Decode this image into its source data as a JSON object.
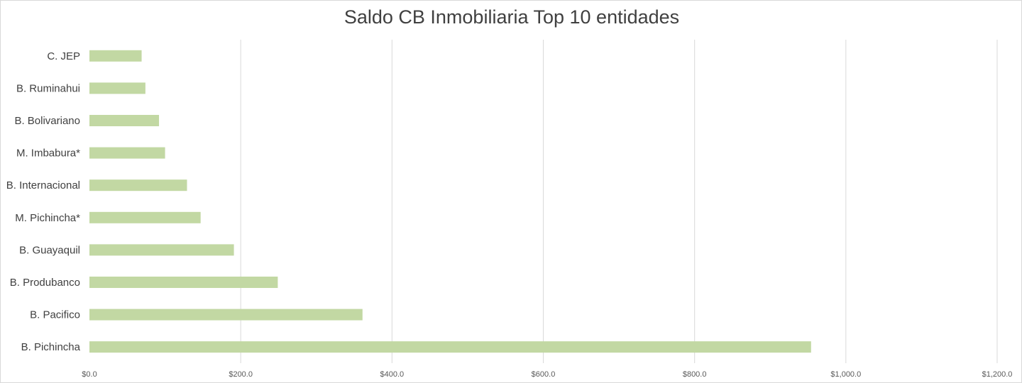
{
  "chart_data": {
    "type": "bar",
    "orientation": "horizontal",
    "title": "Saldo CB Inmobiliaria Top 10 entidades",
    "xlabel": "",
    "ylabel": "",
    "categories": [
      "C. JEP",
      "B. Ruminahui",
      "B. Bolivariano",
      "M. Imbabura*",
      "B. Internacional",
      "M. Pichincha*",
      "B. Guayaquil",
      "B. Produbanco",
      "B. Pacifico",
      "B. Pichincha"
    ],
    "values": [
      69,
      74,
      92,
      100,
      129,
      147,
      191,
      249,
      361,
      954
    ],
    "xlim": [
      0,
      1200
    ],
    "x_ticks": [
      0,
      200,
      400,
      600,
      800,
      1000,
      1200
    ],
    "x_tick_labels": [
      "$0.0",
      "$200.0",
      "$400.0",
      "$600.0",
      "$800.0",
      "$1,000.0",
      "$1,200.0"
    ],
    "grid": "vertical",
    "legend": "none",
    "bar_color": "#c2d8a3",
    "grid_color": "#d9d9d9"
  }
}
